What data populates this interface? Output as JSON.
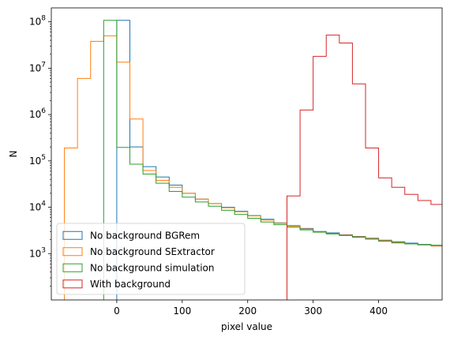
{
  "chart_data": {
    "type": "histogram",
    "title": "",
    "xlabel": "pixel value",
    "ylabel": "N",
    "xscale": "linear",
    "yscale": "log",
    "xlim": [
      -100,
      497
    ],
    "ylim": [
      100,
      200000000
    ],
    "grid": false,
    "legend_position": "lower-left",
    "bin_edges": [
      -80,
      -60,
      -40,
      -20,
      0,
      20,
      40,
      60,
      80,
      100,
      120,
      140,
      160,
      180,
      200,
      220,
      240,
      260,
      280,
      300,
      320,
      340,
      360,
      380,
      400,
      420,
      440,
      460,
      480,
      500
    ],
    "x_ticks": [
      {
        "value": 0,
        "label": "0"
      },
      {
        "value": 100,
        "label": "100"
      },
      {
        "value": 200,
        "label": "200"
      },
      {
        "value": 300,
        "label": "300"
      },
      {
        "value": 400,
        "label": "400"
      }
    ],
    "y_ticks": [
      {
        "value": 1000,
        "base": "10",
        "exp": "3"
      },
      {
        "value": 10000,
        "base": "10",
        "exp": "4"
      },
      {
        "value": 100000,
        "base": "10",
        "exp": "5"
      },
      {
        "value": 1000000,
        "base": "10",
        "exp": "6"
      },
      {
        "value": 10000000,
        "base": "10",
        "exp": "7"
      },
      {
        "value": 100000000,
        "base": "10",
        "exp": "8"
      }
    ],
    "series": [
      {
        "name": "No background BGRem",
        "color": "#1f77b4",
        "counts": [
          0,
          0,
          0,
          0,
          108000000,
          200000,
          75000,
          45000,
          30000,
          20000,
          15000,
          12000,
          10000,
          8200,
          6600,
          5500,
          4600,
          4000,
          3500,
          3000,
          2800,
          2550,
          2350,
          2150,
          1950,
          1800,
          1680,
          1580,
          1500
        ]
      },
      {
        "name": "No background SExtractor",
        "color": "#ff7f0e",
        "counts": [
          190000,
          6000000,
          38000000,
          50000000,
          13500000,
          800000,
          62000,
          38000,
          27000,
          20000,
          15000,
          12000,
          9800,
          8000,
          6500,
          5300,
          4500,
          3900,
          3400,
          2950,
          2700,
          2500,
          2300,
          2100,
          1900,
          1750,
          1630,
          1530,
          1450
        ]
      },
      {
        "name": "No background simulation",
        "color": "#2ca02c",
        "counts": [
          0,
          0,
          0,
          108000000,
          195000,
          85000,
          52000,
          33000,
          22000,
          16500,
          13000,
          10500,
          8600,
          7000,
          5800,
          4800,
          4200,
          3700,
          3250,
          2900,
          2650,
          2450,
          2250,
          2050,
          1850,
          1700,
          1620,
          1560,
          1520
        ]
      },
      {
        "name": "With background",
        "color": "#d62728",
        "counts": [
          0,
          0,
          0,
          0,
          0,
          0,
          0,
          0,
          0,
          0,
          0,
          0,
          0,
          0,
          0,
          0,
          0,
          17500,
          1250000,
          18000000,
          52000000,
          35000000,
          4600000,
          190000,
          43000,
          27000,
          19000,
          14000,
          11500
        ]
      }
    ]
  }
}
